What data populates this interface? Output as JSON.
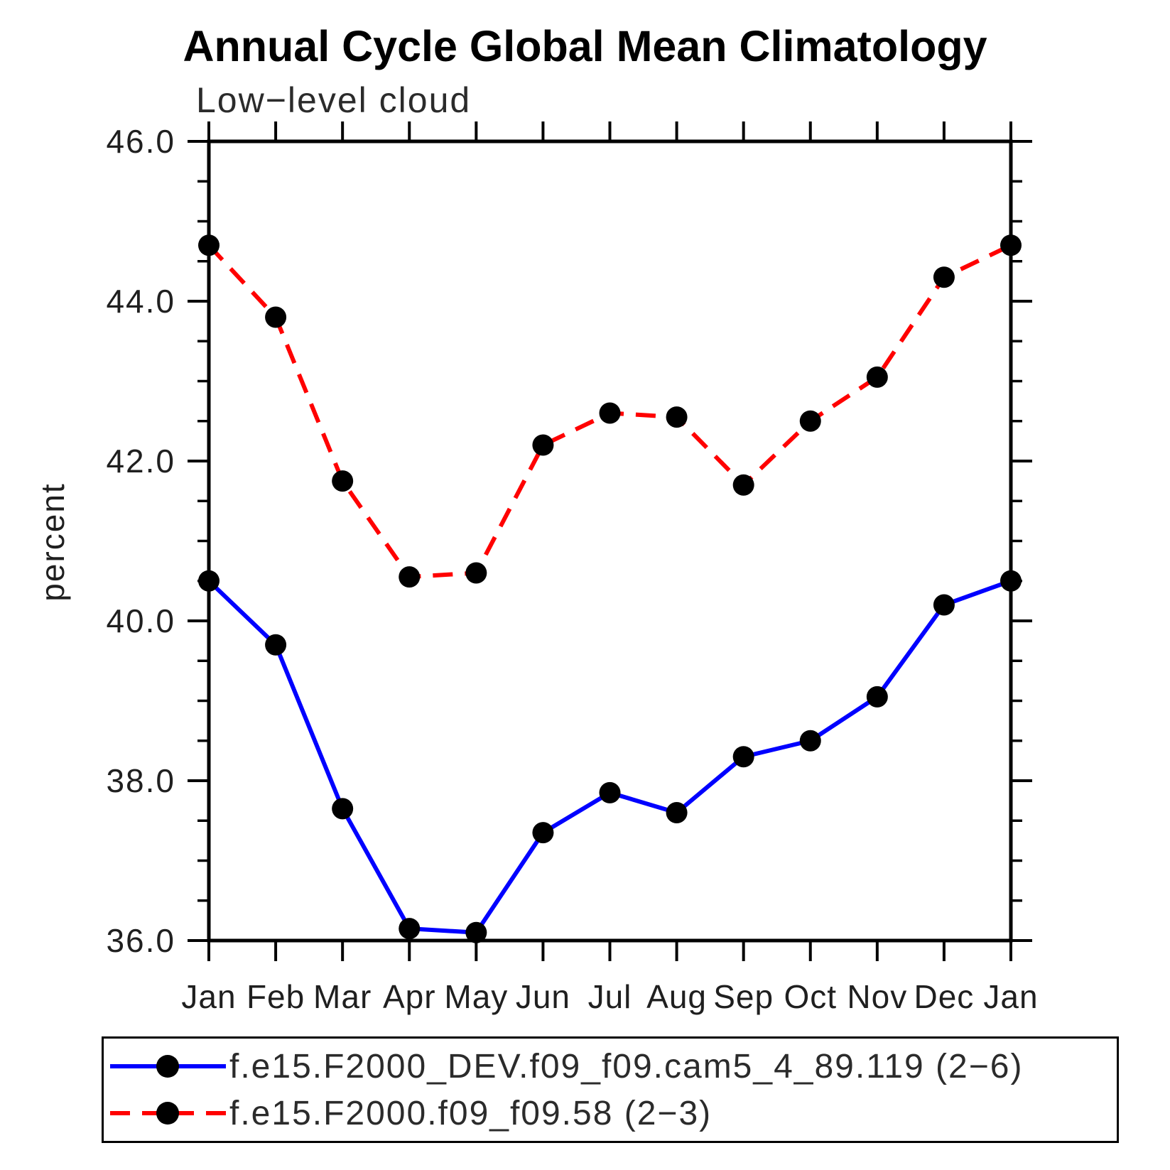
{
  "chart_data": {
    "type": "line",
    "title": "Annual Cycle Global Mean Climatology",
    "subtitle": "Low−level cloud",
    "xlabel": "",
    "ylabel": "percent",
    "categories": [
      "Jan",
      "Feb",
      "Mar",
      "Apr",
      "May",
      "Jun",
      "Jul",
      "Aug",
      "Sep",
      "Oct",
      "Nov",
      "Dec",
      "Jan"
    ],
    "ylim": [
      36.0,
      46.0
    ],
    "ytick_interval": 2.0,
    "yminor_interval": 0.5,
    "ytick_labels": [
      "36.0",
      "38.0",
      "40.0",
      "42.0",
      "44.0",
      "46.0"
    ],
    "grid": false,
    "legend_position": "bottom-box",
    "marker": "filled-circle",
    "marker_color": "#000000",
    "series": [
      {
        "name": "f.e15.F2000_DEV.f09_f09.cam5_4_89.119 (2−6)",
        "color": "#0000ff",
        "style": "solid",
        "values": [
          40.5,
          39.7,
          37.65,
          36.15,
          36.1,
          37.35,
          37.85,
          37.6,
          38.3,
          38.5,
          39.05,
          40.2,
          40.5
        ]
      },
      {
        "name": "f.e15.F2000.f09_f09.58 (2−3)",
        "color": "#ff0000",
        "style": "dashed",
        "values": [
          44.7,
          43.8,
          41.75,
          40.55,
          40.6,
          42.2,
          42.6,
          42.55,
          41.7,
          42.5,
          43.05,
          44.3,
          44.7
        ]
      }
    ]
  }
}
